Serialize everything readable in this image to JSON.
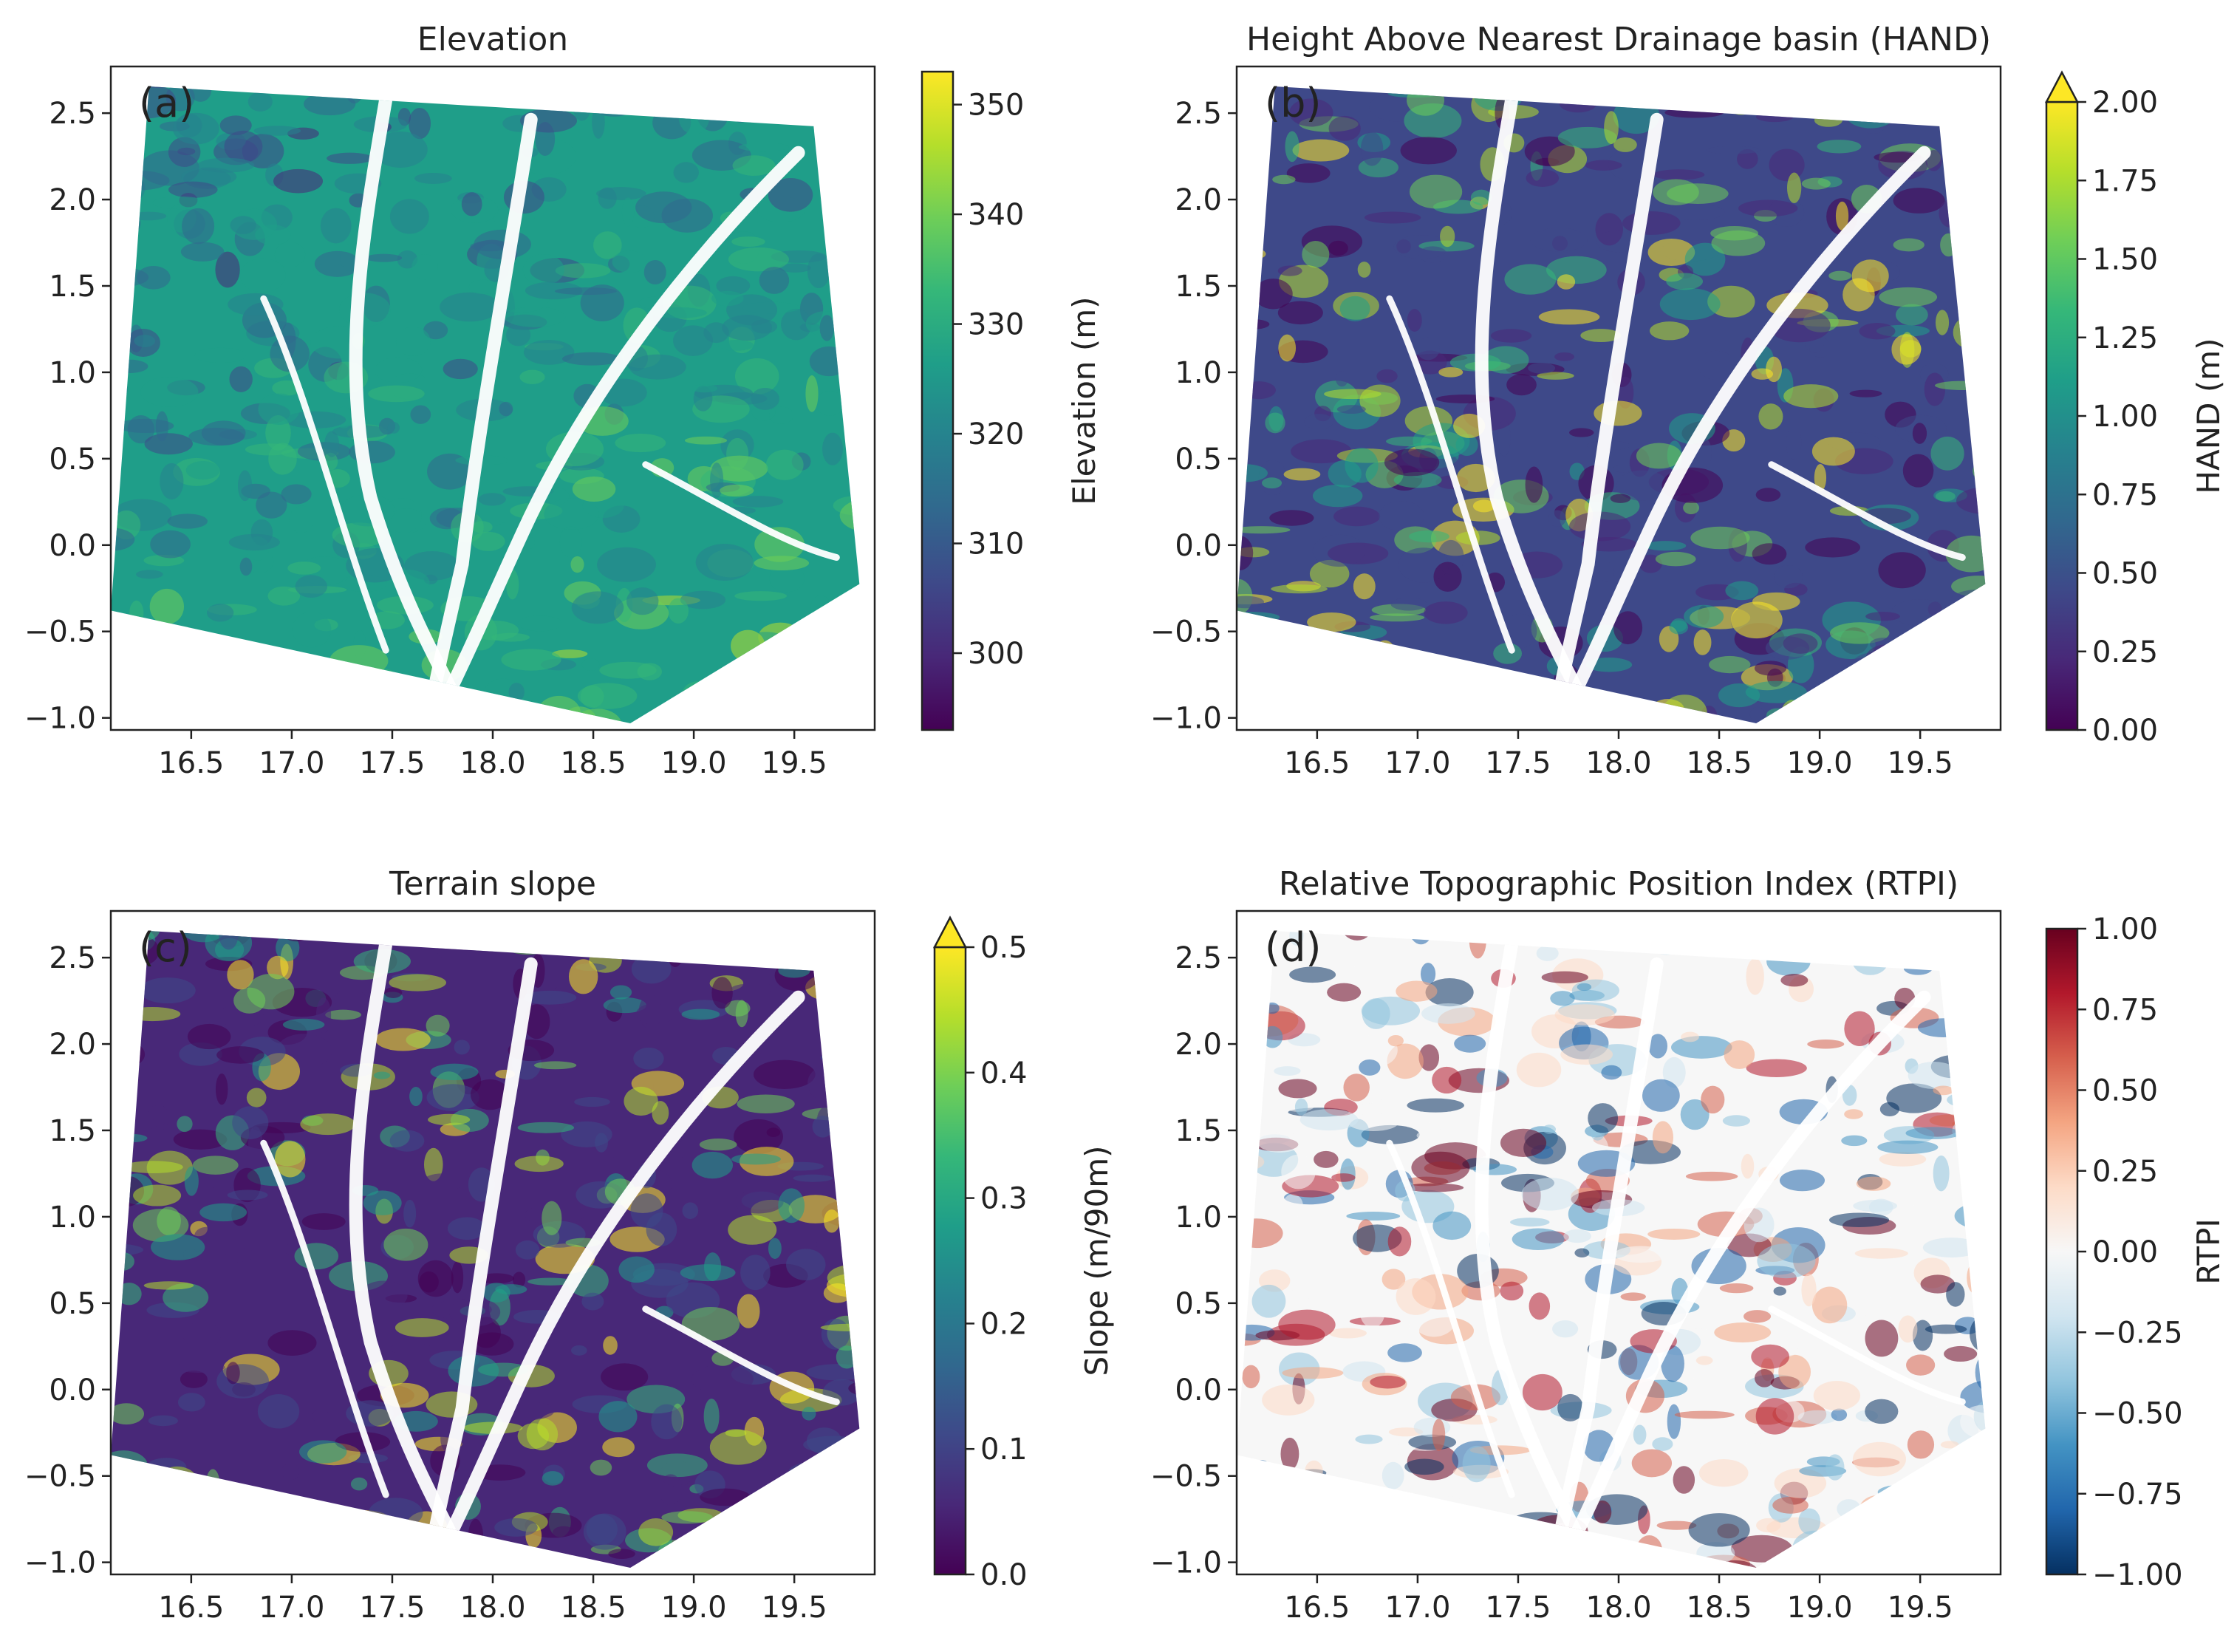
{
  "chart_data": [
    {
      "type": "heatmap",
      "panel": "(a)",
      "title": "Elevation",
      "xlim": [
        16.1,
        19.9
      ],
      "ylim": [
        -1.07,
        2.77
      ],
      "xticks": [
        16.5,
        17.0,
        17.5,
        18.0,
        18.5,
        19.0,
        19.5
      ],
      "xtick_labels": [
        "16.5",
        "17.0",
        "17.5",
        "18.0",
        "18.5",
        "19.0",
        "19.5"
      ],
      "yticks": [
        -1.0,
        -0.5,
        0.0,
        0.5,
        1.0,
        1.5,
        2.0,
        2.5
      ],
      "ytick_labels": [
        "−1.0",
        "−0.5",
        "0.0",
        "0.5",
        "1.0",
        "1.5",
        "2.0",
        "2.5"
      ],
      "grid": false,
      "colorbar": {
        "label": "Elevation (m)",
        "colormap": "viridis",
        "vmin": 293,
        "vmax": 353,
        "ticks": [
          300,
          310,
          320,
          330,
          340,
          350
        ],
        "tick_labels": [
          "300",
          "310",
          "320",
          "330",
          "340",
          "350"
        ],
        "extend_max": false
      }
    },
    {
      "type": "heatmap",
      "panel": "(b)",
      "title": "Height Above Nearest Drainage basin (HAND)",
      "xlim": [
        16.1,
        19.9
      ],
      "ylim": [
        -1.07,
        2.77
      ],
      "xticks": [
        16.5,
        17.0,
        17.5,
        18.0,
        18.5,
        19.0,
        19.5
      ],
      "xtick_labels": [
        "16.5",
        "17.0",
        "17.5",
        "18.0",
        "18.5",
        "19.0",
        "19.5"
      ],
      "yticks": [
        -1.0,
        -0.5,
        0.0,
        0.5,
        1.0,
        1.5,
        2.0,
        2.5
      ],
      "ytick_labels": [
        "−1.0",
        "−0.5",
        "0.0",
        "0.5",
        "1.0",
        "1.5",
        "2.0",
        "2.5"
      ],
      "grid": false,
      "colorbar": {
        "label": "HAND (m)",
        "colormap": "viridis",
        "vmin": 0,
        "vmax": 2,
        "ticks": [
          0,
          0.25,
          0.5,
          0.75,
          1.0,
          1.25,
          1.5,
          1.75,
          2.0
        ],
        "tick_labels": [
          "0.00",
          "0.25",
          "0.50",
          "0.75",
          "1.00",
          "1.25",
          "1.50",
          "1.75",
          "2.00"
        ],
        "extend_max": true
      }
    },
    {
      "type": "heatmap",
      "panel": "(c)",
      "title": "Terrain slope",
      "xlim": [
        16.1,
        19.9
      ],
      "ylim": [
        -1.07,
        2.77
      ],
      "xticks": [
        16.5,
        17.0,
        17.5,
        18.0,
        18.5,
        19.0,
        19.5
      ],
      "xtick_labels": [
        "16.5",
        "17.0",
        "17.5",
        "18.0",
        "18.5",
        "19.0",
        "19.5"
      ],
      "yticks": [
        -1.0,
        -0.5,
        0.0,
        0.5,
        1.0,
        1.5,
        2.0,
        2.5
      ],
      "ytick_labels": [
        "−1.0",
        "−0.5",
        "0.0",
        "0.5",
        "1.0",
        "1.5",
        "2.0",
        "2.5"
      ],
      "grid": false,
      "colorbar": {
        "label": "Slope (m/90m)",
        "colormap": "viridis",
        "vmin": 0,
        "vmax": 0.5,
        "ticks": [
          0,
          0.1,
          0.2,
          0.3,
          0.4,
          0.5
        ],
        "tick_labels": [
          "0.0",
          "0.1",
          "0.2",
          "0.3",
          "0.4",
          "0.5"
        ],
        "extend_max": true
      }
    },
    {
      "type": "heatmap",
      "panel": "(d)",
      "title": "Relative Topographic Position Index (RTPI)",
      "xlim": [
        16.1,
        19.9
      ],
      "ylim": [
        -1.07,
        2.77
      ],
      "xticks": [
        16.5,
        17.0,
        17.5,
        18.0,
        18.5,
        19.0,
        19.5
      ],
      "xtick_labels": [
        "16.5",
        "17.0",
        "17.5",
        "18.0",
        "18.5",
        "19.0",
        "19.5"
      ],
      "yticks": [
        -1.0,
        -0.5,
        0.0,
        0.5,
        1.0,
        1.5,
        2.0,
        2.5
      ],
      "ytick_labels": [
        "−1.0",
        "−0.5",
        "0.0",
        "0.5",
        "1.0",
        "1.5",
        "2.0",
        "2.5"
      ],
      "grid": false,
      "colorbar": {
        "label": "RTPI",
        "colormap": "RdBu_r",
        "vmin": -1,
        "vmax": 1,
        "ticks": [
          -1,
          -0.75,
          -0.5,
          -0.25,
          0,
          0.25,
          0.5,
          0.75,
          1.0
        ],
        "tick_labels": [
          "−1.00",
          "−0.75",
          "−0.50",
          "−0.25",
          "0.00",
          "0.25",
          "0.50",
          "0.75",
          "1.00"
        ],
        "extend_max": false
      }
    }
  ],
  "colors": {
    "viridis": [
      "#440154",
      "#482878",
      "#3e4989",
      "#31688e",
      "#26828e",
      "#1f9e89",
      "#35b779",
      "#6ece58",
      "#b5de2b",
      "#fde725"
    ],
    "rdbu_r": [
      "#053061",
      "#2166ac",
      "#4393c3",
      "#92c5de",
      "#d1e5f0",
      "#f7f7f7",
      "#fddbc7",
      "#f4a582",
      "#d6604d",
      "#b2182b",
      "#67001f"
    ],
    "axis": "#222222",
    "background": "#ffffff"
  }
}
